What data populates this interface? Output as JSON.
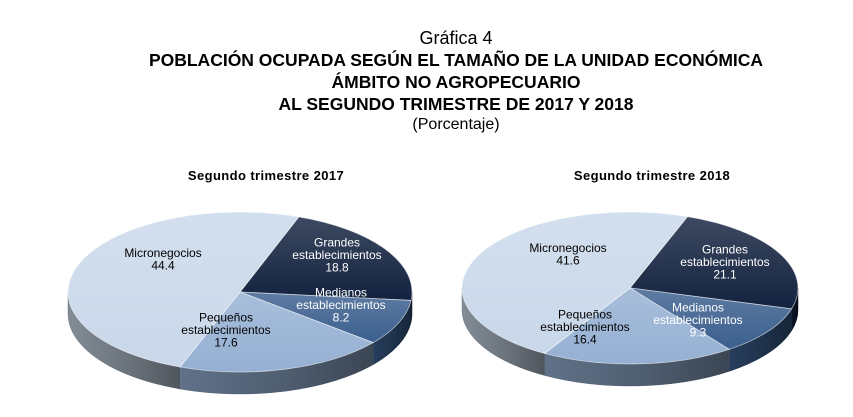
{
  "header": {
    "figure_label": "Gráfica 4",
    "title_line1": "POBLACIÓN OCUPADA SEGÚN EL TAMAÑO DE LA UNIDAD ECONÓMICA",
    "title_line2": "ÁMBITO NO AGROPECUARIO",
    "title_line3": "AL SEGUNDO TRIMESTRE DE 2017 Y 2018",
    "unit": "(Porcentaje)"
  },
  "colors": {
    "micronegocios": "#c9d8ea",
    "grandes": "#13223f",
    "medianos": "#3b5f8e",
    "pequenos": "#95b0d3"
  },
  "chart_data": [
    {
      "type": "pie",
      "title": "Segundo trimestre 2017",
      "slices": [
        {
          "key": "micronegocios",
          "label": "Micronegocios",
          "value": 44.4,
          "value_text": "44.4"
        },
        {
          "key": "grandes",
          "label": "Grandes establecimientos",
          "value": 18.8,
          "value_text": "18.8"
        },
        {
          "key": "medianos",
          "label": "Medianos establecimientos",
          "value": 8.2,
          "value_text": "8.2"
        },
        {
          "key": "pequenos",
          "label": "Pequeños establecimientos",
          "value": 17.6,
          "value_text": "17.6"
        }
      ]
    },
    {
      "type": "pie",
      "title": "Segundo trimestre 2018",
      "slices": [
        {
          "key": "micronegocios",
          "label": "Micronegocios",
          "value": 41.6,
          "value_text": "41.6"
        },
        {
          "key": "grandes",
          "label": "Grandes establecimientos",
          "value": 21.1,
          "value_text": "21.1"
        },
        {
          "key": "medianos",
          "label": "Medianos establecimientos",
          "value": 9.3,
          "value_text": "9.3"
        },
        {
          "key": "pequenos",
          "label": "Pequeños establecimientos",
          "value": 16.4,
          "value_text": "16.4"
        }
      ]
    }
  ]
}
